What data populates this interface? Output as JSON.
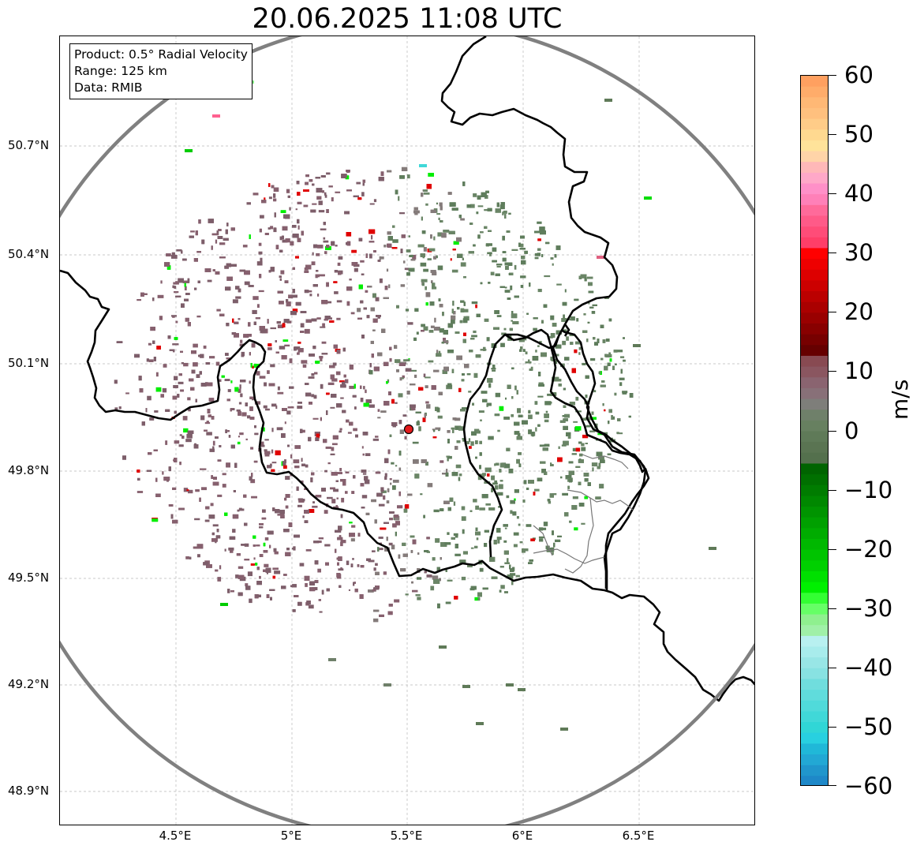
{
  "title": "20.06.2025 11:08 UTC",
  "info": {
    "product": "Product: 0.5° Radial Velocity",
    "range": "Range: 125 km",
    "data": "Data: RMIB"
  },
  "axes": {
    "lat_labels": [
      "50.7°N",
      "50.4°N",
      "50.1°N",
      "49.8°N",
      "49.5°N",
      "49.2°N",
      "48.9°N"
    ],
    "lon_labels": [
      "4.5°E",
      "5°E",
      "5.5°E",
      "6°E",
      "6.5°E"
    ]
  },
  "colorbar": {
    "unit": "m/s",
    "ticks": [
      "60",
      "50",
      "40",
      "30",
      "20",
      "10",
      "0",
      "−10",
      "−20",
      "−30",
      "−40",
      "−50",
      "−60"
    ],
    "vmin": -60,
    "vmax": 60
  },
  "colors": {
    "inbound_strong": "#00ee00",
    "inbound_weak": "#5f7d5c",
    "outbound_weak": "#7d5e6a",
    "outbound_strong": "#e00000",
    "range_ring": "#808080",
    "borders": "#000000",
    "radar_site": "#e31a1c"
  },
  "radar_site": {
    "lon": 5.505,
    "lat": 49.914
  },
  "range_km": 125
}
